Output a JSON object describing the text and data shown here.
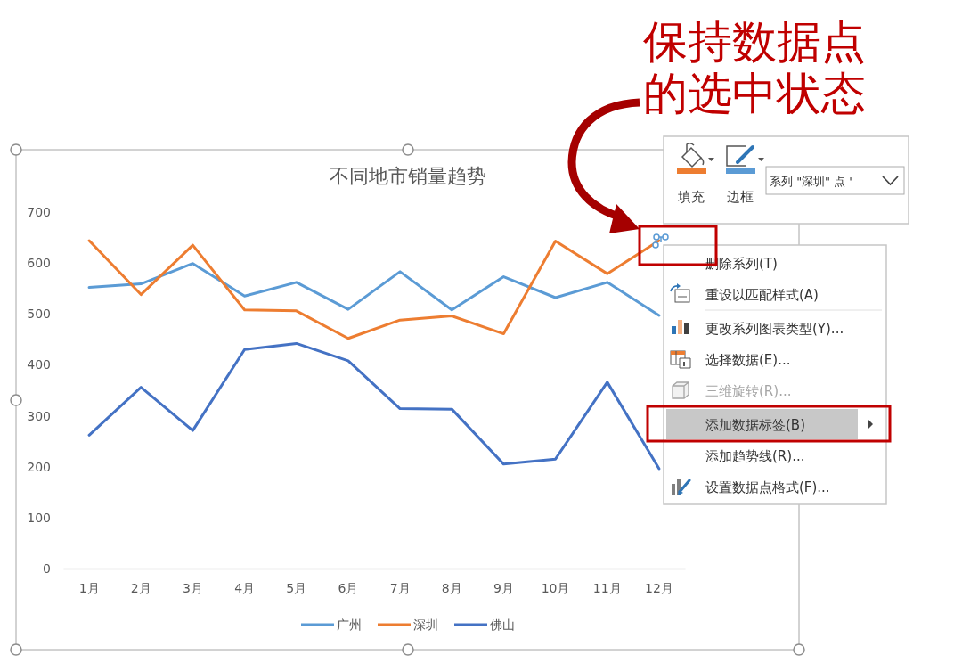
{
  "chart_data": {
    "type": "line",
    "title": "不同地市销量趋势",
    "categories": [
      "1月",
      "2月",
      "3月",
      "4月",
      "5月",
      "6月",
      "7月",
      "8月",
      "9月",
      "10月",
      "11月",
      "12月"
    ],
    "series": [
      {
        "name": "广州",
        "color": "#5b9bd5",
        "values": [
          552,
          559,
          599,
          535,
          562,
          509,
          583,
          508,
          573,
          532,
          562,
          497
        ]
      },
      {
        "name": "深圳",
        "color": "#ed7d31",
        "values": [
          644,
          538,
          635,
          508,
          506,
          452,
          488,
          496,
          461,
          643,
          579,
          644
        ]
      },
      {
        "name": "佛山",
        "color": "#4472c4",
        "values": [
          262,
          356,
          271,
          430,
          442,
          408,
          314,
          313,
          205,
          215,
          366,
          196
        ]
      }
    ],
    "ylim": [
      0,
      700
    ],
    "yticks": [
      0,
      100,
      200,
      300,
      400,
      500,
      600,
      700
    ],
    "legend": "bottom",
    "annotations": [
      "保持数据点的选中状态",
      "填充",
      "边框",
      "系列 \"深圳\" 点 '",
      "删除系列(T)",
      "重设以匹配样式(A)",
      "更改系列图表类型(Y)...",
      "选择数据(E)...",
      "三维旋转(R)...",
      "添加数据标签(B)",
      "添加趋势线(R)...",
      "设置数据点格式(F)..."
    ]
  }
}
